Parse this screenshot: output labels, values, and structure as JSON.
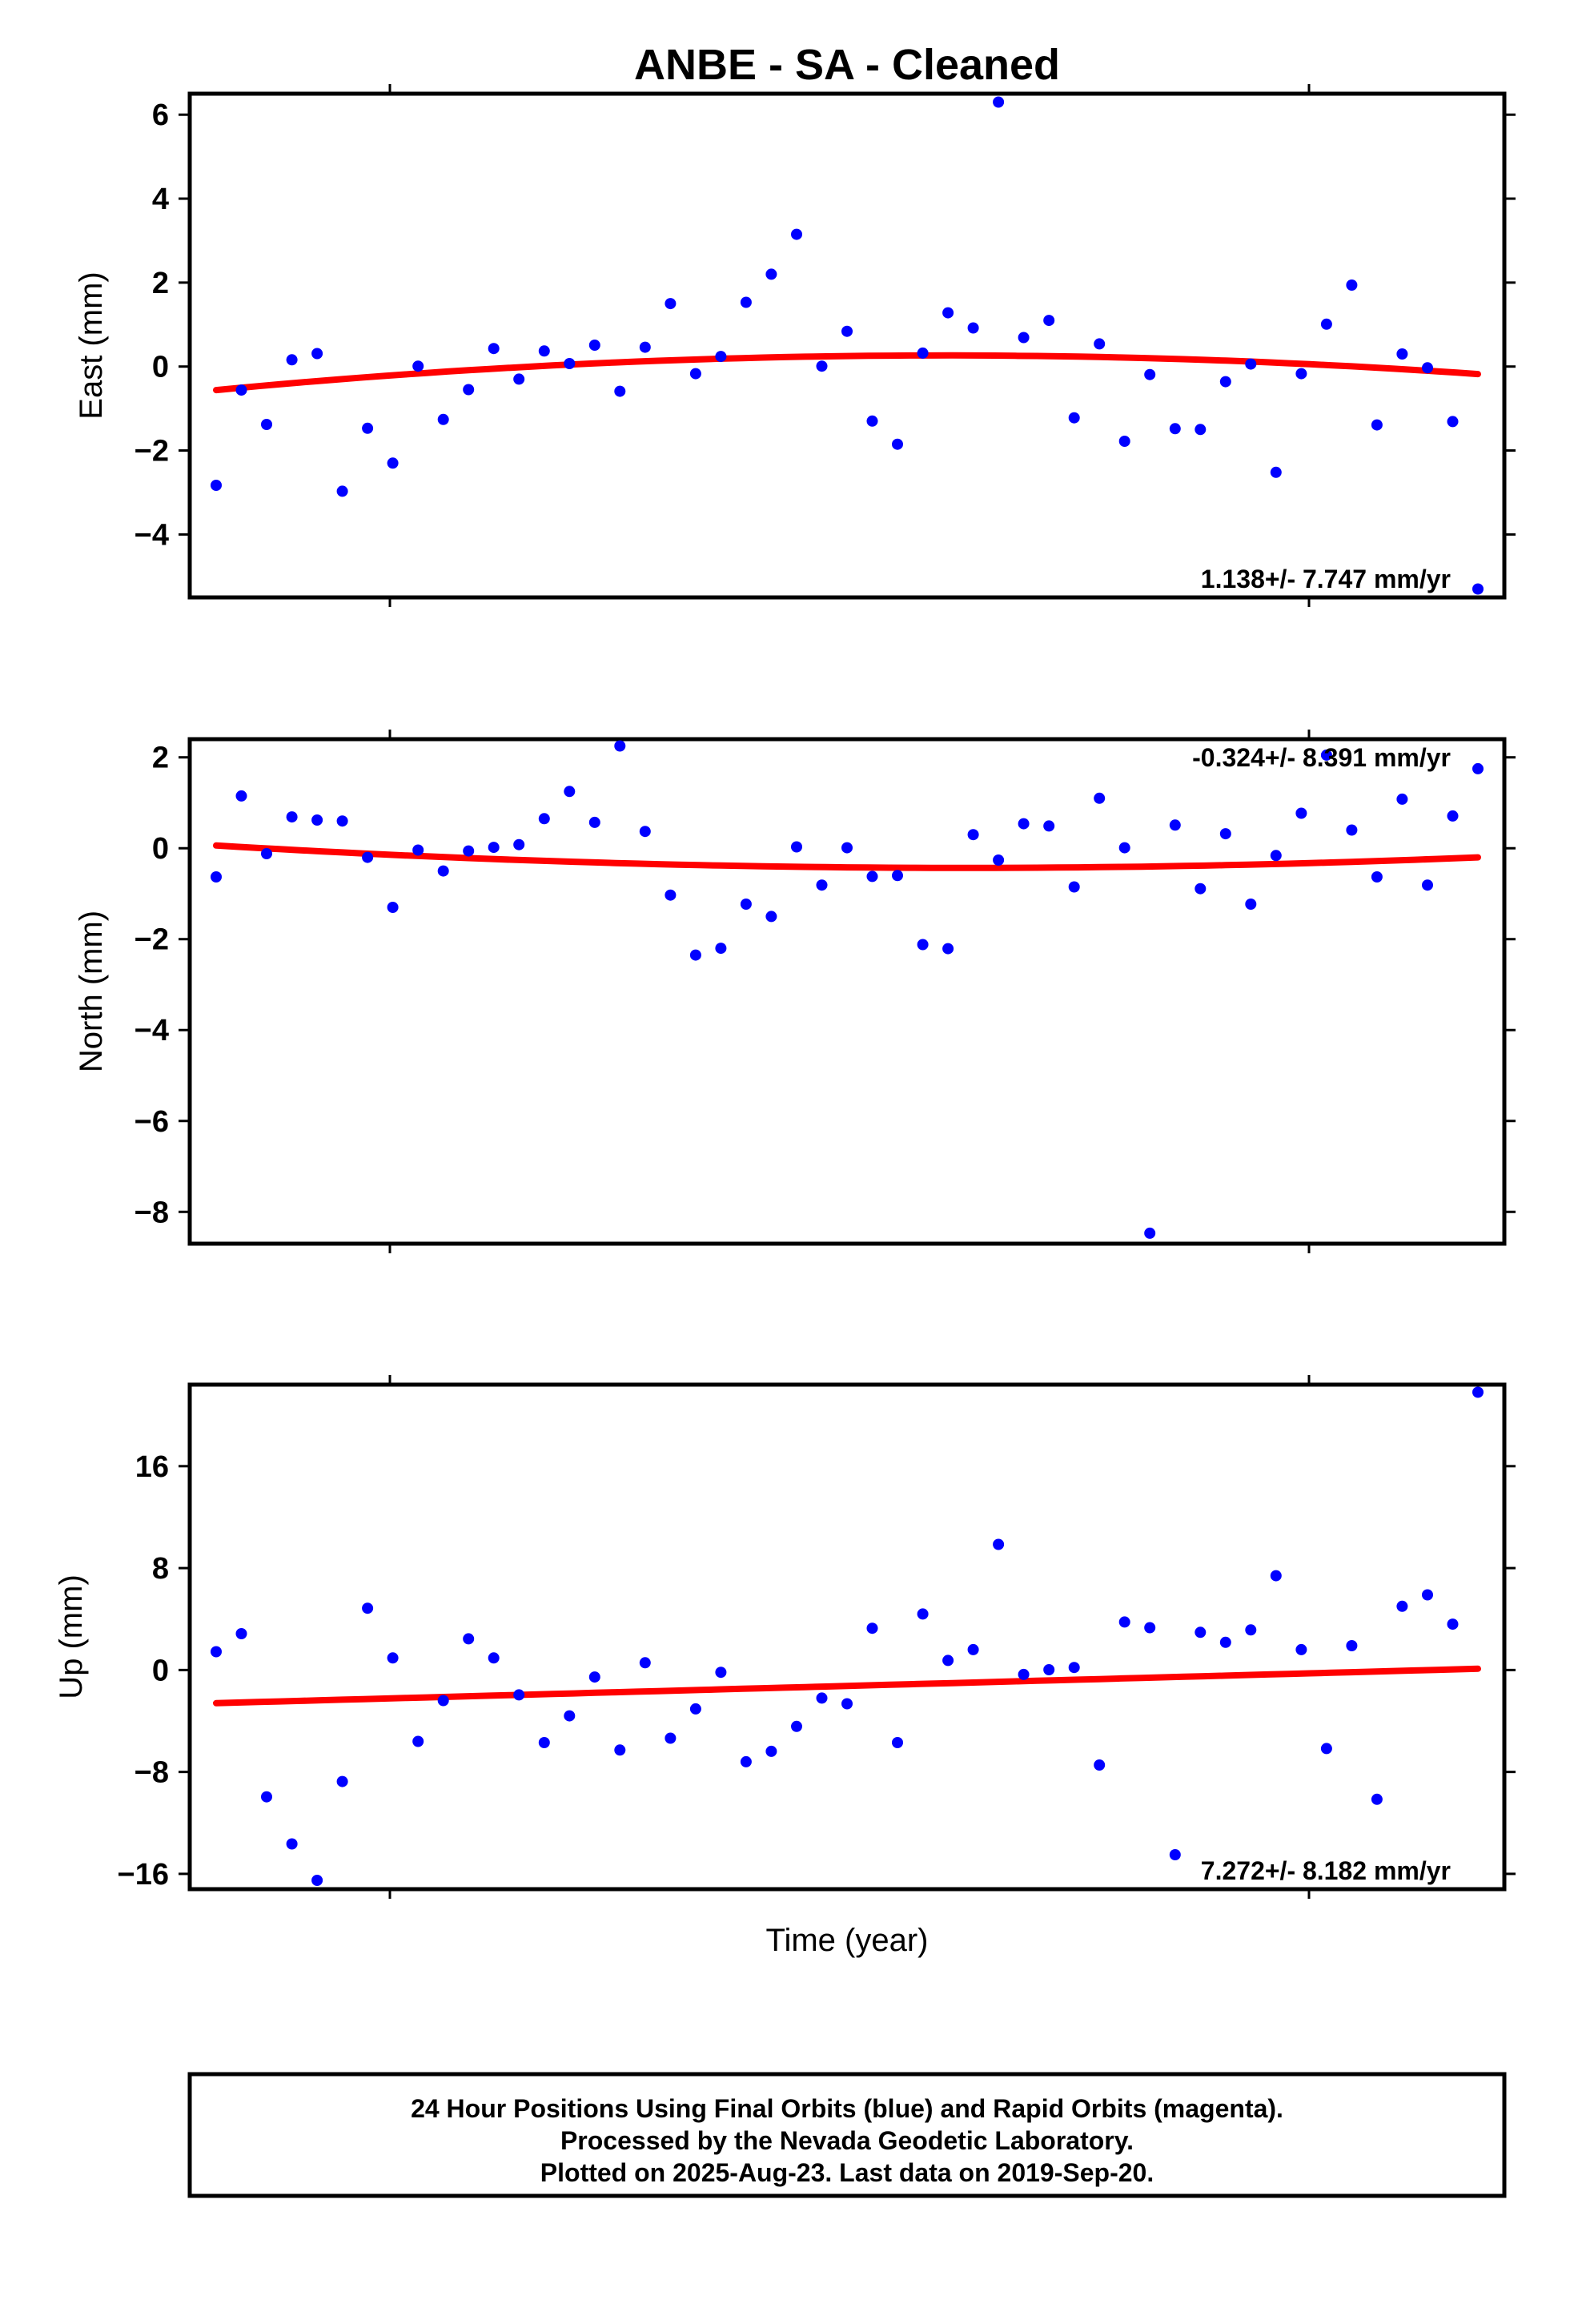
{
  "chart_data": {
    "type": "scatter",
    "title": "ANBE  - SA - Cleaned",
    "xlabel": "Time (year)",
    "colors": {
      "points": "#0000ff",
      "trend": "#ff0000",
      "frame": "#000000"
    },
    "panels": [
      {
        "name": "east",
        "ylabel": "East (mm)",
        "ylim": [
          -5.5,
          6.5
        ],
        "yticks": [
          "6",
          "4",
          "2",
          "0",
          "−2",
          "−4"
        ],
        "ytick_values": [
          6,
          4,
          2,
          0,
          -2,
          -4
        ],
        "rate": "1.138+/- 7.747 mm/yr",
        "rate_position": "bottom-right",
        "points": [
          -2.83,
          -0.56,
          -1.38,
          0.16,
          0.31,
          -2.97,
          -1.47,
          -2.3,
          0.01,
          -1.26,
          -0.55,
          0.43,
          -0.3,
          0.37,
          0.07,
          0.51,
          -0.59,
          0.46,
          1.5,
          -0.17,
          0.24,
          1.53,
          2.2,
          3.15,
          0.01,
          0.84,
          -1.3,
          -1.85,
          0.32,
          1.28,
          0.92,
          6.3,
          0.69,
          1.1,
          -1.22,
          0.54,
          -1.78,
          -0.19,
          -1.48,
          -1.5,
          -0.36,
          0.06,
          -2.52,
          -0.17,
          1.01,
          1.94,
          -1.39,
          0.3,
          -0.03,
          -1.31,
          -5.3
        ],
        "trend": [
          -0.56,
          -0.18
        ]
      },
      {
        "name": "north",
        "ylabel": "North (mm)",
        "ylim": [
          -8.7,
          2.4
        ],
        "yticks": [
          "2",
          "0",
          "−2",
          "−4",
          "−6",
          "−8"
        ],
        "ytick_values": [
          2,
          0,
          -2,
          -4,
          -6,
          -8
        ],
        "rate": "-0.324+/- 8.391 mm/yr",
        "rate_position": "top-right",
        "points": [
          -0.63,
          1.15,
          -0.12,
          0.69,
          0.62,
          0.6,
          -0.2,
          -1.3,
          -0.04,
          -0.5,
          -0.06,
          0.02,
          0.08,
          0.65,
          1.25,
          0.57,
          2.25,
          0.37,
          -1.03,
          -2.35,
          -2.2,
          -1.23,
          -1.5,
          0.03,
          -0.81,
          0.01,
          -0.62,
          -0.6,
          -2.12,
          -2.21,
          0.3,
          -0.26,
          0.54,
          0.49,
          -0.85,
          1.1,
          0.01,
          -8.47,
          0.51,
          -0.89,
          0.32,
          -1.23,
          -0.16,
          0.77,
          2.05,
          0.4,
          -0.63,
          1.08,
          -0.81,
          0.71,
          1.75
        ],
        "trend": [
          0.06,
          -0.2
        ]
      },
      {
        "name": "up",
        "ylabel": "Up (mm)",
        "ylim": [
          -17.2,
          22.4
        ],
        "yticks": [
          "16",
          "8",
          "0",
          "−8",
          "−16"
        ],
        "ytick_values": [
          16,
          8,
          0,
          -8,
          -16
        ],
        "rate": "7.272+/- 8.182 mm/yr",
        "rate_position": "bottom-right",
        "points": [
          1.44,
          2.85,
          -9.95,
          -13.65,
          -16.51,
          -8.75,
          4.85,
          0.95,
          -5.6,
          -2.4,
          2.45,
          0.95,
          -1.95,
          -5.7,
          -3.6,
          -0.55,
          -6.28,
          0.57,
          -5.35,
          -3.05,
          -0.18,
          -7.2,
          -6.38,
          -4.43,
          -2.2,
          -2.65,
          3.28,
          -5.7,
          4.4,
          0.75,
          1.6,
          9.86,
          -0.35,
          0.02,
          0.2,
          -7.46,
          3.77,
          3.32,
          -14.5,
          2.96,
          2.17,
          3.15,
          7.4,
          1.6,
          -6.16,
          1.91,
          -10.15,
          5.0,
          5.9,
          3.6,
          21.8
        ],
        "trend": [
          -2.6,
          0.1
        ]
      }
    ]
  },
  "footer": {
    "line1": "24 Hour Positions Using Final Orbits (blue) and Rapid Orbits (magenta).",
    "line2": "Processed by the Nevada Geodetic Laboratory.",
    "line3": "Plotted on 2025-Aug-23. Last data on 2019-Sep-20."
  }
}
